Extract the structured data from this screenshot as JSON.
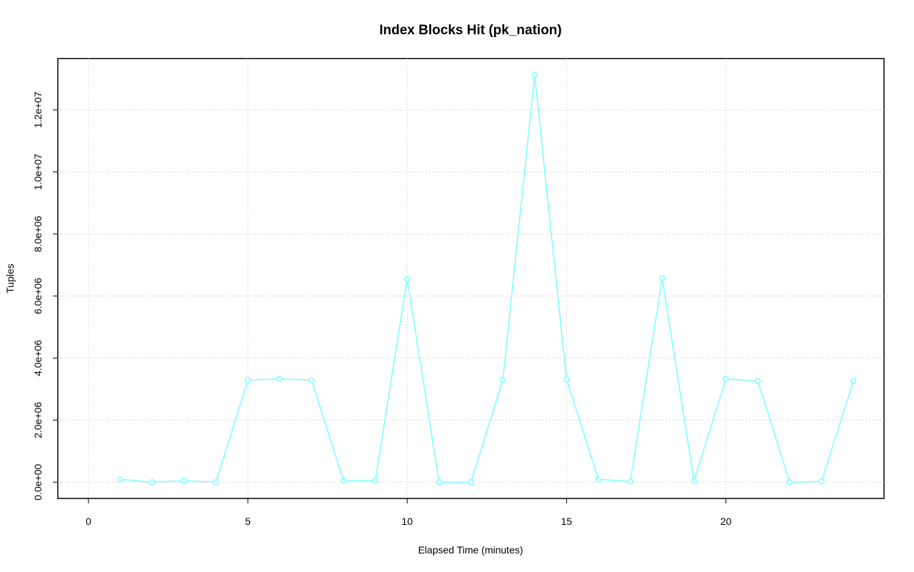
{
  "chart_data": {
    "type": "line",
    "title": "Index Blocks Hit (pk_nation)",
    "x_label": "Elapsed Time (minutes)",
    "y_label": "Tuples",
    "x": [
      1,
      2,
      3,
      4,
      5,
      6,
      7,
      8,
      9,
      10,
      11,
      12,
      13,
      14,
      15,
      16,
      17,
      18,
      19,
      20,
      21,
      22,
      23,
      24
    ],
    "series": [
      {
        "color": "#77ffff",
        "values": [
          92000,
          0,
          46000,
          5000,
          3290000,
          3330000,
          3290000,
          46000,
          46000,
          6550000,
          0,
          0,
          3290000,
          13130000,
          3310000,
          92000,
          23000,
          6570000,
          46000,
          3330000,
          3260000,
          0,
          23000,
          3260000
        ]
      }
    ],
    "xlim": [
      -0.96,
      24.96
    ],
    "xticks": [
      0,
      5,
      10,
      15,
      20
    ],
    "ylim": [
      -525000,
      13655000
    ],
    "yticks": [
      {
        "value": 0,
        "label": "0.0e+00"
      },
      {
        "value": 2000000,
        "label": "2.0e+06"
      },
      {
        "value": 4000000,
        "label": "4.0e+06"
      },
      {
        "value": 6000000,
        "label": "6.0e+06"
      },
      {
        "value": 8000000,
        "label": "8.0e+06"
      },
      {
        "value": 10000000,
        "label": "1.0e+07"
      },
      {
        "value": 12000000,
        "label": "1.2e+07"
      }
    ],
    "grid": true
  }
}
